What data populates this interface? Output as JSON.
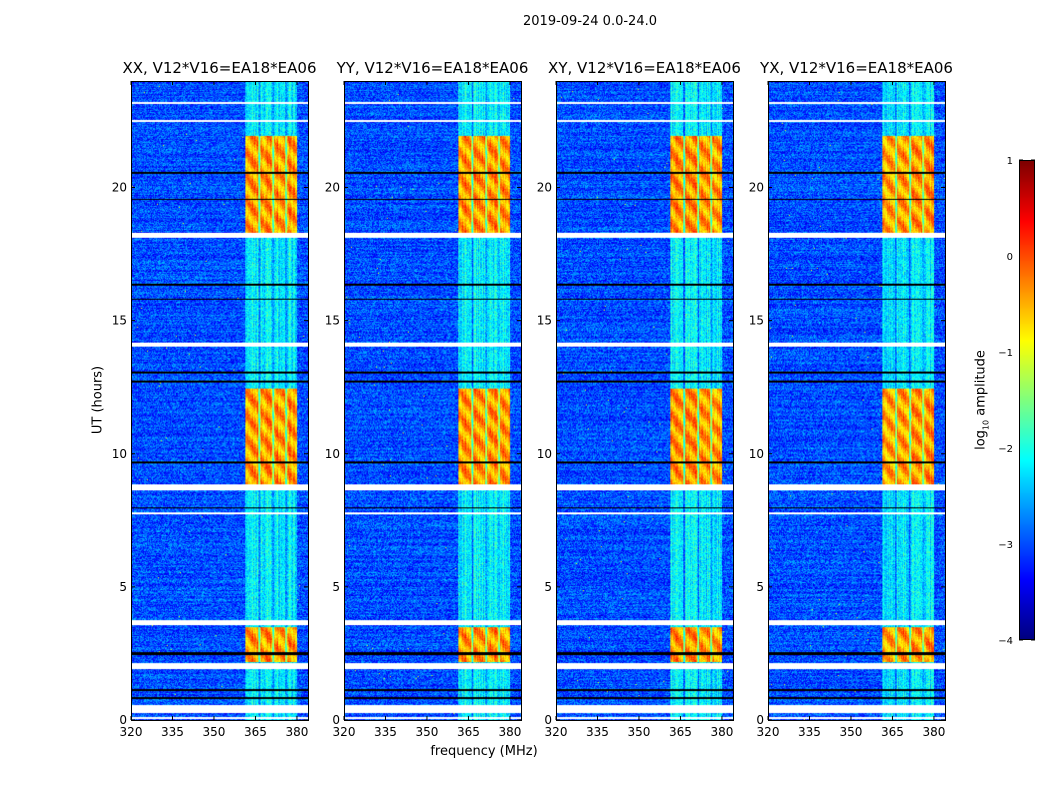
{
  "chart_data": {
    "type": "heatmap",
    "title": "2019-09-24 0.0-24.0",
    "xlabel": "frequency (MHz)",
    "ylabel": "UT (hours)",
    "xlim": [
      320,
      384
    ],
    "ylim": [
      0,
      24
    ],
    "xticks": [
      "320",
      "335",
      "350",
      "365",
      "380"
    ],
    "xtick_values": [
      320,
      335,
      350,
      365,
      380
    ],
    "yticks": [
      "0",
      "5",
      "10",
      "15",
      "20"
    ],
    "ytick_values": [
      0,
      5,
      10,
      15,
      20
    ],
    "panels": [
      {
        "title": "XX, V12*V16=EA18*EA06",
        "seed": 11
      },
      {
        "title": "YY, V12*V16=EA18*EA06",
        "seed": 23
      },
      {
        "title": "XY, V12*V16=EA18*EA06",
        "seed": 37
      },
      {
        "title": "YX, V12*V16=EA18*EA06",
        "seed": 51
      }
    ],
    "colorbar": {
      "label": "log",
      "label_sub": "10",
      "label_suffix": " amplitude",
      "colormap": "jet",
      "range": [
        -4,
        1
      ],
      "ticks": [
        "1",
        "0",
        "−1",
        "−2",
        "−3",
        "−4"
      ],
      "tick_values": [
        1,
        0,
        -1,
        -2,
        -3,
        -4
      ]
    },
    "background_log_amplitude": -3.0,
    "rfi_band_mhz": [
      361,
      381
    ],
    "rfi_channel_gaps_mhz": [
      366,
      371,
      376
    ],
    "rfi_quiet_log_amplitude": -2.2,
    "rfi_active_log_amplitude": -0.4,
    "rfi_active_hours": [
      [
        2.2,
        3.5
      ],
      [
        8.9,
        12.5
      ],
      [
        18.3,
        22.0
      ]
    ],
    "flagged_hours": [
      [
        0.05,
        0.12
      ],
      [
        0.3,
        0.6
      ],
      [
        1.95,
        2.15
      ],
      [
        3.6,
        3.78
      ],
      [
        7.75,
        7.82
      ],
      [
        8.65,
        8.9
      ],
      [
        14.05,
        14.2
      ],
      [
        18.15,
        18.35
      ],
      [
        22.5,
        22.6
      ],
      [
        23.2,
        23.25
      ]
    ],
    "dropout_hours": [
      0.85,
      1.15,
      2.5,
      2.55,
      8.0,
      9.7,
      12.75,
      13.1,
      15.85,
      16.4,
      19.6,
      20.6
    ]
  }
}
